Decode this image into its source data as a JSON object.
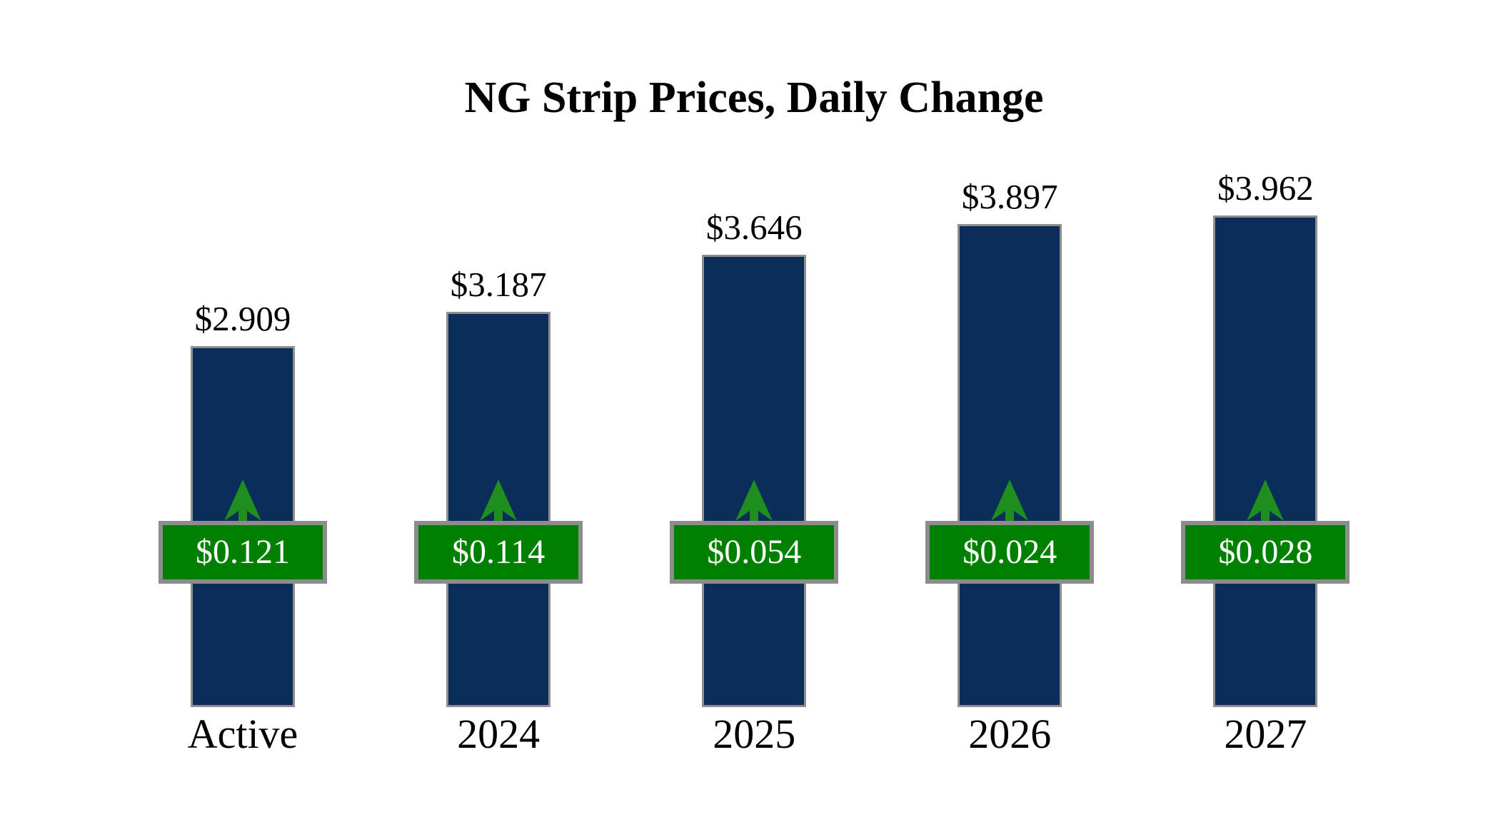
{
  "title": "NG Strip Prices, Daily Change",
  "colors": {
    "background": "#ffffff",
    "bar_fill": "#0b2d5a",
    "bar_border": "#8f8f8f",
    "badge_fill": "#008000",
    "badge_border": "#8c8c8c",
    "badge_text": "#ffffff",
    "arrow": "#1e8e1e",
    "text": "#000000"
  },
  "chart_data": {
    "type": "bar",
    "title": "NG Strip Prices, Daily Change",
    "categories": [
      "Active",
      "2024",
      "2025",
      "2026",
      "2027"
    ],
    "series": [
      {
        "name": "Strip Price",
        "values": [
          2.909,
          3.187,
          3.646,
          3.897,
          3.962
        ],
        "labels": [
          "$2.909",
          "$3.187",
          "$3.646",
          "$3.897",
          "$3.962"
        ]
      },
      {
        "name": "Daily Change",
        "values": [
          0.121,
          0.114,
          0.054,
          0.024,
          0.028
        ],
        "labels": [
          "$0.121",
          "$0.114",
          "$0.054",
          "$0.024",
          "$0.028"
        ],
        "direction": "up"
      }
    ],
    "ylim": [
      0,
      4.2
    ],
    "grid": false,
    "legend": "none",
    "xlabel": "",
    "ylabel": ""
  }
}
